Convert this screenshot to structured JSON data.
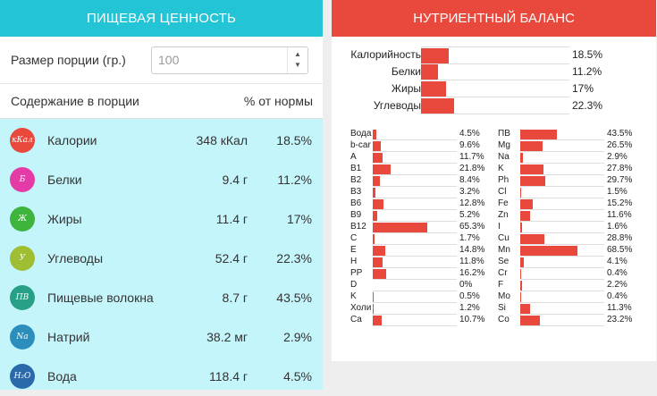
{
  "left": {
    "title": "ПИЩЕВАЯ ЦЕННОСТЬ",
    "portion_label": "Размер порции (гр.)",
    "portion_value": "100",
    "col_content": "Содержание в порции",
    "col_norm": "% от нормы",
    "nutrients": [
      {
        "icon": "кКал",
        "icon_name": "calories-icon",
        "color": "#e9493d",
        "name": "Калории",
        "amount": "348 кКал",
        "pct": "18.5%"
      },
      {
        "icon": "Б",
        "icon_name": "protein-icon",
        "color": "#e53ba6",
        "name": "Белки",
        "amount": "9.4 г",
        "pct": "11.2%"
      },
      {
        "icon": "Ж",
        "icon_name": "fat-icon",
        "color": "#3fb43d",
        "name": "Жиры",
        "amount": "11.4 г",
        "pct": "17%"
      },
      {
        "icon": "У",
        "icon_name": "carbs-icon",
        "color": "#9fbe32",
        "name": "Углеводы",
        "amount": "52.4 г",
        "pct": "22.3%"
      },
      {
        "icon": "ПВ",
        "icon_name": "fiber-icon",
        "color": "#27a087",
        "name": "Пищевые волокна",
        "amount": "8.7 г",
        "pct": "43.5%"
      },
      {
        "icon": "Na",
        "icon_name": "sodium-icon",
        "color": "#2b8ebc",
        "name": "Натрий",
        "amount": "38.2 мг",
        "pct": "2.9%"
      },
      {
        "icon": "H₂O",
        "icon_name": "water-icon",
        "color": "#2a6aaa",
        "name": "Вода",
        "amount": "118.4 г",
        "pct": "4.5%"
      }
    ]
  },
  "right": {
    "title": "НУТРИЕНТНЫЙ БАЛАНС",
    "balance": [
      {
        "label": "Калорийность",
        "value": 18.5,
        "pct": "18.5%"
      },
      {
        "label": "Белки",
        "value": 11.2,
        "pct": "11.2%"
      },
      {
        "label": "Жиры",
        "value": 17,
        "pct": "17%"
      },
      {
        "label": "Углеводы",
        "value": 22.3,
        "pct": "22.3%"
      }
    ],
    "vitamins": [
      {
        "label": "Вода",
        "value": 4.5,
        "pct": "4.5%"
      },
      {
        "label": "b-car",
        "value": 9.6,
        "pct": "9.6%"
      },
      {
        "label": "A",
        "value": 11.7,
        "pct": "11.7%"
      },
      {
        "label": "B1",
        "value": 21.8,
        "pct": "21.8%"
      },
      {
        "label": "B2",
        "value": 8.4,
        "pct": "8.4%"
      },
      {
        "label": "B3",
        "value": 3.2,
        "pct": "3.2%"
      },
      {
        "label": "B6",
        "value": 12.8,
        "pct": "12.8%"
      },
      {
        "label": "B9",
        "value": 5.2,
        "pct": "5.2%"
      },
      {
        "label": "B12",
        "value": 65.3,
        "pct": "65.3%"
      },
      {
        "label": "C",
        "value": 1.7,
        "pct": "1.7%"
      },
      {
        "label": "E",
        "value": 14.8,
        "pct": "14.8%"
      },
      {
        "label": "H",
        "value": 11.8,
        "pct": "11.8%"
      },
      {
        "label": "PP",
        "value": 16.2,
        "pct": "16.2%"
      },
      {
        "label": "D",
        "value": 0,
        "pct": "0%"
      },
      {
        "label": "K",
        "value": 0.5,
        "pct": "0.5%"
      },
      {
        "label": "Холи",
        "value": 1.2,
        "pct": "1.2%"
      },
      {
        "label": "Ca",
        "value": 10.7,
        "pct": "10.7%"
      }
    ],
    "minerals": [
      {
        "label": "ПВ",
        "value": 43.5,
        "pct": "43.5%"
      },
      {
        "label": "Mg",
        "value": 26.5,
        "pct": "26.5%"
      },
      {
        "label": "Na",
        "value": 2.9,
        "pct": "2.9%"
      },
      {
        "label": "K",
        "value": 27.8,
        "pct": "27.8%"
      },
      {
        "label": "Ph",
        "value": 29.7,
        "pct": "29.7%"
      },
      {
        "label": "Cl",
        "value": 1.5,
        "pct": "1.5%"
      },
      {
        "label": "Fe",
        "value": 15.2,
        "pct": "15.2%"
      },
      {
        "label": "Zn",
        "value": 11.6,
        "pct": "11.6%"
      },
      {
        "label": "I",
        "value": 1.6,
        "pct": "1.6%"
      },
      {
        "label": "Cu",
        "value": 28.8,
        "pct": "28.8%"
      },
      {
        "label": "Mn",
        "value": 68.5,
        "pct": "68.5%"
      },
      {
        "label": "Se",
        "value": 4.1,
        "pct": "4.1%"
      },
      {
        "label": "Cr",
        "value": 0.4,
        "pct": "0.4%"
      },
      {
        "label": "F",
        "value": 2.2,
        "pct": "2.2%"
      },
      {
        "label": "Mo",
        "value": 0.4,
        "pct": "0.4%"
      },
      {
        "label": "Si",
        "value": 11.3,
        "pct": "11.3%"
      },
      {
        "label": "Co",
        "value": 23.2,
        "pct": "23.2%"
      }
    ]
  }
}
